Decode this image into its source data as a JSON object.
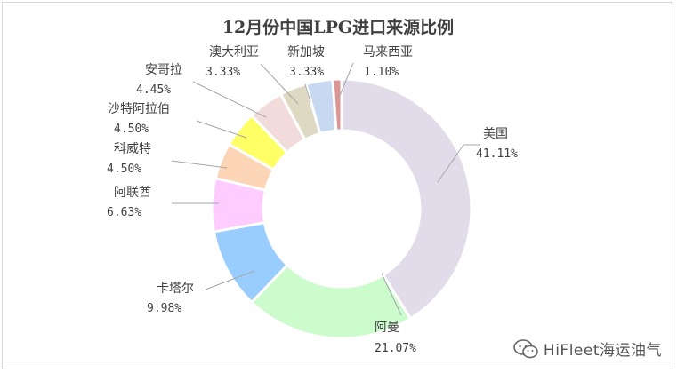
{
  "chart_data": {
    "type": "pie",
    "title": "12月份中国LPG进口来源比例",
    "unit": "%",
    "slices": [
      {
        "label": "美国",
        "value": 41.11,
        "value_text": "41.11%",
        "color": "#e2dcea"
      },
      {
        "label": "阿曼",
        "value": 21.07,
        "value_text": "21.07%",
        "color": "#ccfccc"
      },
      {
        "label": "卡塔尔",
        "value": 9.98,
        "value_text": "9.98%",
        "color": "#99ccff"
      },
      {
        "label": "阿联酋",
        "value": 6.63,
        "value_text": "6.63%",
        "color": "#ffccff"
      },
      {
        "label": "科威特",
        "value": 4.5,
        "value_text": "4.50%",
        "color": "#fbd5b5"
      },
      {
        "label": "沙特阿拉伯",
        "value": 4.5,
        "value_text": "4.50%",
        "color": "#ffff66"
      },
      {
        "label": "安哥拉",
        "value": 4.45,
        "value_text": "4.45%",
        "color": "#f2dcdb"
      },
      {
        "label": "澳大利亚",
        "value": 3.33,
        "value_text": "3.33%",
        "color": "#ddd9c3"
      },
      {
        "label": "新加坡",
        "value": 3.33,
        "value_text": "3.33%",
        "color": "#c6d9f1"
      },
      {
        "label": "马来西亚",
        "value": 1.1,
        "value_text": "1.10%",
        "color": "#d99694"
      }
    ]
  },
  "watermark": {
    "text": "HiFleet海运油气",
    "icon": "wechat-icon"
  }
}
